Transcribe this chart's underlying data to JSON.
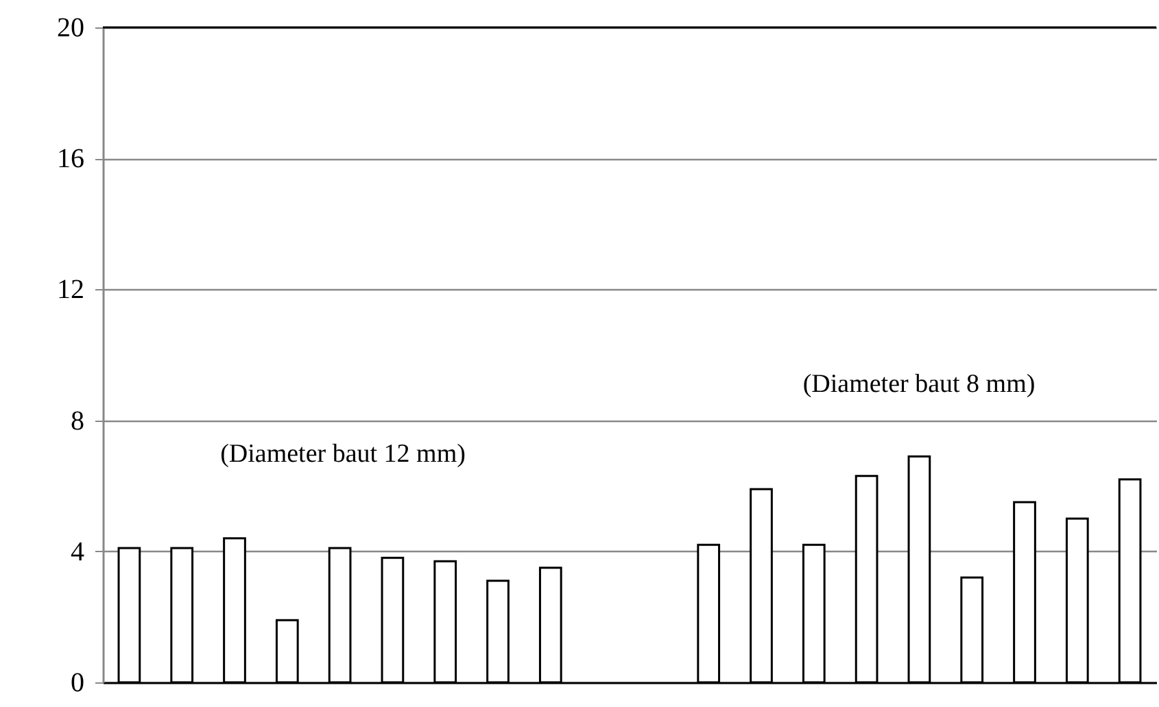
{
  "chart_data": {
    "type": "bar",
    "categories": [
      null,
      null,
      null,
      null,
      null,
      null,
      null,
      null,
      null,
      null,
      null,
      null,
      null,
      null,
      null,
      null,
      null,
      null,
      null,
      null
    ],
    "values": [
      4.1,
      4.1,
      4.4,
      1.9,
      4.1,
      3.8,
      3.7,
      3.1,
      3.5,
      null,
      null,
      4.2,
      5.9,
      4.2,
      6.3,
      6.9,
      3.2,
      5.5,
      5.0,
      6.2
    ],
    "color": "#ffffff",
    "ylim": [
      0,
      20
    ],
    "yticks": [
      0,
      4,
      8,
      12,
      16,
      20
    ],
    "grid": "y",
    "tick_labels": "y",
    "annotations": [
      "(Diameter baut 12 mm)",
      "(Diameter baut 8 mm)"
    ]
  }
}
